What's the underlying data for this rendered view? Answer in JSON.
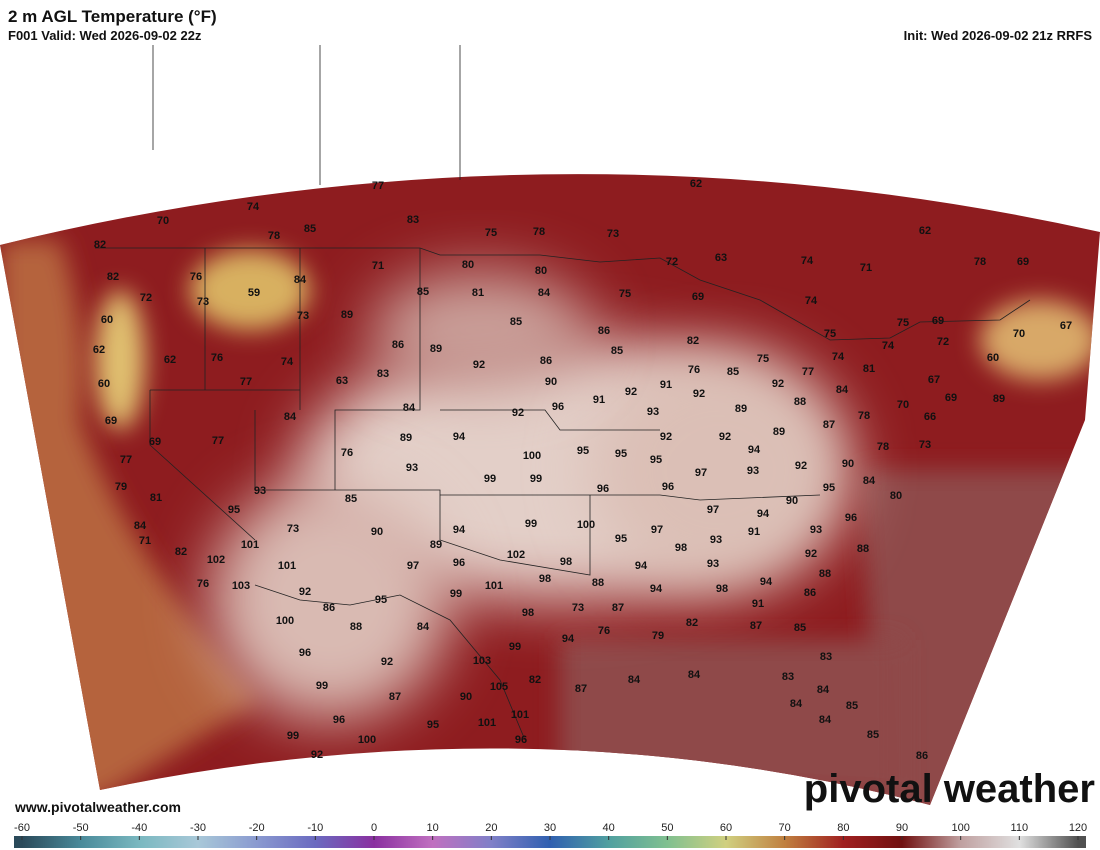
{
  "header": {
    "title": "2 m AGL Temperature (°F)",
    "valid": "F001 Valid: Wed 2026-09-02 22z",
    "init": "Init: Wed 2026-09-02 21z RRFS"
  },
  "map": {
    "type": "station-temperatures",
    "values": [
      77,
      74,
      83,
      75,
      78,
      73,
      62,
      62,
      70,
      78,
      85,
      82,
      82,
      72,
      76,
      59,
      73,
      84,
      71,
      80,
      80,
      85,
      81,
      84,
      75,
      72,
      63,
      74,
      71,
      78,
      69,
      60,
      62,
      62,
      76,
      77,
      74,
      73,
      89,
      86,
      83,
      63,
      89,
      92,
      85,
      86,
      85,
      86,
      90,
      82,
      76,
      85,
      75,
      77,
      74,
      75,
      74,
      74,
      75,
      69,
      72,
      70,
      60,
      67,
      81,
      84,
      92,
      69,
      60,
      69,
      69,
      77,
      84,
      84,
      89,
      92,
      96,
      91,
      92,
      91,
      92,
      93,
      92,
      94,
      76,
      93,
      100,
      95,
      95,
      95,
      92,
      89,
      88,
      89,
      78,
      87,
      67,
      69,
      70,
      66,
      78,
      73,
      90,
      89,
      77,
      79,
      81,
      93,
      85,
      99,
      99,
      96,
      97,
      96,
      93,
      94,
      92,
      95,
      84,
      80,
      90,
      97,
      94,
      93,
      96,
      84,
      95,
      71,
      101,
      73,
      90,
      94,
      89,
      99,
      100,
      95,
      97,
      82,
      102,
      101,
      97,
      96,
      102,
      98,
      98,
      93,
      91,
      92,
      88,
      76,
      103,
      92,
      86,
      95,
      99,
      101,
      98,
      88,
      94,
      94,
      93,
      98,
      94,
      88,
      86,
      73,
      87,
      76,
      94,
      79,
      82,
      87,
      85,
      100,
      88,
      84,
      98,
      91,
      96,
      92,
      103,
      99,
      83,
      87,
      84,
      84,
      83,
      99,
      87,
      90,
      105,
      82,
      84,
      84,
      85,
      84,
      96,
      95,
      101,
      101,
      100,
      99,
      92,
      96,
      85,
      86
    ]
  },
  "colorbar": {
    "lim": [
      -60,
      120
    ],
    "ticks": [
      -60,
      -50,
      -40,
      -30,
      -20,
      -10,
      0,
      10,
      20,
      30,
      40,
      50,
      60,
      70,
      80,
      90,
      100,
      110,
      120
    ]
  },
  "footer": {
    "website": "www.pivotalweather.com",
    "watermark": "pivotal weather"
  }
}
